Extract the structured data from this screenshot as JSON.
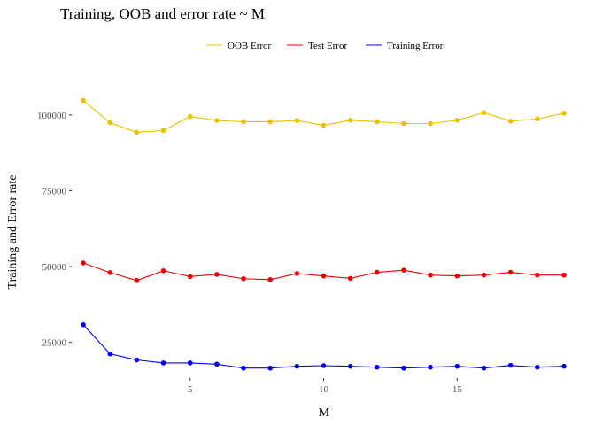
{
  "chart_data": {
    "type": "line",
    "title": "Training, OOB and error rate ~ M",
    "xlabel": "M",
    "ylabel": "Training and Error rate",
    "x": [
      1,
      2,
      3,
      4,
      5,
      6,
      7,
      8,
      9,
      10,
      11,
      12,
      13,
      14,
      15,
      16,
      17,
      18,
      19
    ],
    "xlim": [
      0.6,
      19.1
    ],
    "ylim": [
      13500,
      114000
    ],
    "xticks": [
      5,
      10,
      15
    ],
    "yticks": [
      25000,
      50000,
      75000,
      100000
    ],
    "grid": false,
    "legend_position": "top",
    "series": [
      {
        "name": "OOB Error",
        "color": "#e8c200",
        "values": [
          104800,
          97500,
          94300,
          94900,
          99500,
          98200,
          97800,
          97800,
          98200,
          96600,
          98300,
          97800,
          97200,
          97200,
          98300,
          100800,
          98000,
          98700,
          100600
        ]
      },
      {
        "name": "Test Error",
        "color": "#ee0000",
        "values": [
          51200,
          48000,
          45400,
          48600,
          46700,
          47400,
          46000,
          45700,
          47700,
          46900,
          46100,
          48100,
          48800,
          47200,
          46900,
          47200,
          48100,
          47200,
          47200
        ]
      },
      {
        "name": "Training Error",
        "color": "#0000ee",
        "values": [
          30800,
          21200,
          19200,
          18200,
          18200,
          17800,
          16500,
          16500,
          17100,
          17300,
          17100,
          16800,
          16500,
          16800,
          17100,
          16500,
          17400,
          16800,
          17100
        ]
      }
    ]
  }
}
